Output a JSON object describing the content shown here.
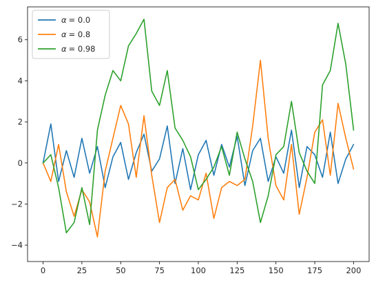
{
  "chart_data": {
    "type": "line",
    "title": "",
    "xlabel": "",
    "ylabel": "",
    "xlim": [
      -10,
      210
    ],
    "ylim": [
      -4.8,
      7.6
    ],
    "x_ticks": [
      0,
      25,
      50,
      75,
      100,
      125,
      150,
      175,
      200
    ],
    "y_ticks": [
      -4,
      -2,
      0,
      2,
      4,
      6
    ],
    "grid": false,
    "legend_position": "top-left",
    "x": [
      0,
      5,
      10,
      15,
      20,
      25,
      30,
      35,
      40,
      45,
      50,
      55,
      60,
      65,
      70,
      75,
      80,
      85,
      90,
      95,
      100,
      105,
      110,
      115,
      120,
      125,
      130,
      135,
      140,
      145,
      150,
      155,
      160,
      165,
      170,
      175,
      180,
      185,
      190,
      195,
      200
    ],
    "series": [
      {
        "name": "α = 0.0",
        "legend_prefix": "α",
        "legend_value": "= 0.0",
        "color": "#1f77b4",
        "values": [
          0.0,
          1.9,
          -0.9,
          0.6,
          -0.7,
          1.2,
          -0.5,
          0.8,
          -1.2,
          0.3,
          1.0,
          -0.8,
          0.5,
          1.4,
          -0.4,
          0.2,
          1.8,
          -1.0,
          0.7,
          -1.3,
          0.4,
          1.1,
          -0.6,
          0.9,
          -0.2,
          1.3,
          -1.1,
          0.6,
          1.2,
          -0.9,
          0.3,
          -0.5,
          1.6,
          -1.2,
          0.8,
          0.4,
          -0.7,
          1.5,
          -1.0,
          0.2,
          0.9
        ]
      },
      {
        "name": "α = 0.8",
        "legend_prefix": "α",
        "legend_value": "= 0.8",
        "color": "#ff7f0e",
        "values": [
          0.0,
          -0.9,
          0.9,
          -1.4,
          -2.6,
          -1.3,
          -1.9,
          -3.6,
          -0.4,
          1.2,
          2.8,
          1.9,
          -0.7,
          2.3,
          -0.6,
          -2.9,
          -1.2,
          -0.8,
          -2.3,
          -1.6,
          -1.8,
          -0.5,
          -2.7,
          -1.2,
          -0.9,
          -1.1,
          -0.8,
          1.8,
          5.0,
          1.2,
          -1.1,
          -1.8,
          0.9,
          -2.5,
          -0.7,
          1.5,
          2.1,
          -0.6,
          2.9,
          1.2,
          -0.3
        ]
      },
      {
        "name": "α = 0.98",
        "legend_prefix": "α",
        "legend_value": "= 0.98",
        "color": "#2ca02c",
        "values": [
          0.0,
          0.4,
          -1.2,
          -3.4,
          -2.9,
          -1.2,
          -3.0,
          1.6,
          3.3,
          4.5,
          4.0,
          5.7,
          6.3,
          7.0,
          3.5,
          2.8,
          4.5,
          1.7,
          1.1,
          0.3,
          -1.3,
          -0.8,
          -0.2,
          0.8,
          -0.6,
          1.5,
          0.2,
          -0.9,
          -2.9,
          -1.6,
          0.4,
          0.8,
          3.0,
          0.5,
          -0.4,
          -1.0,
          3.8,
          4.5,
          6.8,
          4.8,
          1.6
        ]
      }
    ]
  }
}
